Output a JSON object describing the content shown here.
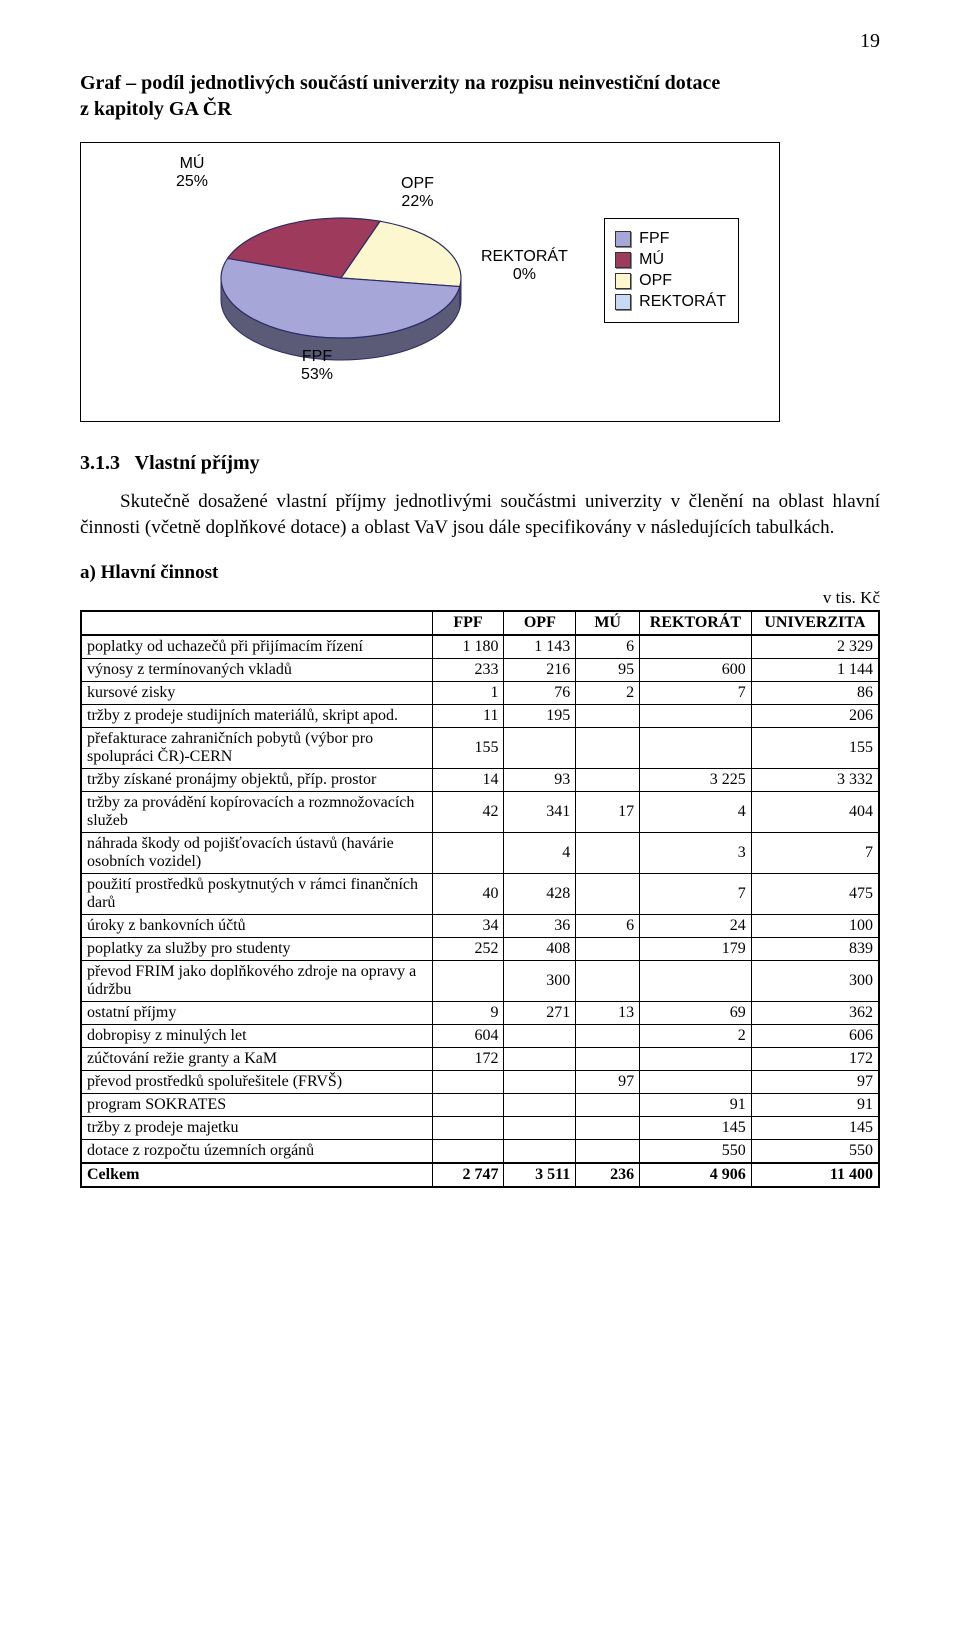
{
  "page_number": "19",
  "title_line1": "Graf – podíl jednotlivých součástí univerzity na rozpisu neinvestiční dotace",
  "title_line2": "z kapitoly GA ČR",
  "chart": {
    "type": "pie",
    "slices": [
      {
        "key": "FPF",
        "label": "FPF",
        "pct": 53,
        "pct_label": "53%",
        "color": "#a6a6d9"
      },
      {
        "key": "MU",
        "label": "MÚ",
        "pct": 25,
        "pct_label": "25%",
        "color": "#9e3a5c"
      },
      {
        "key": "OPF",
        "label": "OPF",
        "pct": 22,
        "pct_label": "22%",
        "color": "#fdf7cf"
      },
      {
        "key": "REKTORAT",
        "label": "REKTORÁT",
        "pct": 0,
        "pct_label": "0%",
        "color": "#c7d9f5"
      }
    ],
    "outline_color": "#2b2b66",
    "font_family": "Arial",
    "label_fontsize": 16,
    "legend": {
      "border_color": "#000000",
      "items": [
        {
          "label": "FPF",
          "color": "#a6a6d9"
        },
        {
          "label": "MÚ",
          "color": "#9e3a5c"
        },
        {
          "label": "OPF",
          "color": "#fdf7cf"
        },
        {
          "label": "REKTORÁT",
          "color": "#c7d9f5"
        }
      ]
    }
  },
  "section_number": "3.1.3",
  "section_title": "Vlastní příjmy",
  "section_body": "Skutečně dosažené vlastní příjmy jednotlivými součástmi univerzity v členění na oblast hlavní činnosti (včetně doplňkové dotace) a oblast VaV jsou dále specifikovány v následujících tabulkách.",
  "subhead": "a) Hlavní činnost",
  "unit_label": "v tis. Kč",
  "table": {
    "columns": [
      "",
      "FPF",
      "OPF",
      "MÚ",
      "REKTORÁT",
      "UNIVERZITA"
    ],
    "col_widths_pct": [
      44,
      9,
      9,
      8,
      14,
      16
    ],
    "rows": [
      {
        "label": "poplatky od uchazečů při přijímacím řízení",
        "cells": [
          "1 180",
          "1 143",
          "6",
          "",
          "2 329"
        ]
      },
      {
        "label": "výnosy z termínovaných vkladů",
        "cells": [
          "233",
          "216",
          "95",
          "600",
          "1 144"
        ]
      },
      {
        "label": "kursové zisky",
        "cells": [
          "1",
          "76",
          "2",
          "7",
          "86"
        ]
      },
      {
        "label": "tržby z prodeje studijních materiálů, skript apod.",
        "cells": [
          "11",
          "195",
          "",
          "",
          "206"
        ]
      },
      {
        "label": "přefakturace zahraničních pobytů (výbor pro spolupráci ČR)-CERN",
        "cells": [
          "155",
          "",
          "",
          "",
          "155"
        ]
      },
      {
        "label": "tržby získané pronájmy objektů, příp. prostor",
        "cells": [
          "14",
          "93",
          "",
          "3 225",
          "3 332"
        ]
      },
      {
        "label": "tržby za provádění kopírovacích a rozmnožovacích služeb",
        "cells": [
          "42",
          "341",
          "17",
          "4",
          "404"
        ]
      },
      {
        "label": "náhrada škody od pojišťovacích ústavů (havárie osobních vozidel)",
        "cells": [
          "",
          "4",
          "",
          "3",
          "7"
        ]
      },
      {
        "label": "použití prostředků poskytnutých v rámci finančních darů",
        "cells": [
          "40",
          "428",
          "",
          "7",
          "475"
        ]
      },
      {
        "label": "úroky z bankovních účtů",
        "cells": [
          "34",
          "36",
          "6",
          "24",
          "100"
        ]
      },
      {
        "label": "poplatky za služby pro studenty",
        "cells": [
          "252",
          "408",
          "",
          "179",
          "839"
        ]
      },
      {
        "label": "převod FRIM jako doplňkového zdroje na opravy a údržbu",
        "cells": [
          "",
          "300",
          "",
          "",
          "300"
        ]
      },
      {
        "label": "ostatní příjmy",
        "cells": [
          "9",
          "271",
          "13",
          "69",
          "362"
        ]
      },
      {
        "label": "dobropisy z minulých let",
        "cells": [
          "604",
          "",
          "",
          "2",
          "606"
        ]
      },
      {
        "label": "zúčtování režie granty a KaM",
        "cells": [
          "172",
          "",
          "",
          "",
          "172"
        ]
      },
      {
        "label": "převod prostředků spoluřešitele (FRVŠ)",
        "cells": [
          "",
          "",
          "97",
          "",
          "97"
        ]
      },
      {
        "label": "program SOKRATES",
        "cells": [
          "",
          "",
          "",
          "91",
          "91"
        ]
      },
      {
        "label": "tržby z prodeje majetku",
        "cells": [
          "",
          "",
          "",
          "145",
          "145"
        ]
      },
      {
        "label": "dotace z rozpočtu územních orgánů",
        "cells": [
          "",
          "",
          "",
          "550",
          "550"
        ]
      }
    ],
    "total": {
      "label": "Celkem",
      "cells": [
        "2 747",
        "3 511",
        "236",
        "4 906",
        "11 400"
      ]
    }
  }
}
